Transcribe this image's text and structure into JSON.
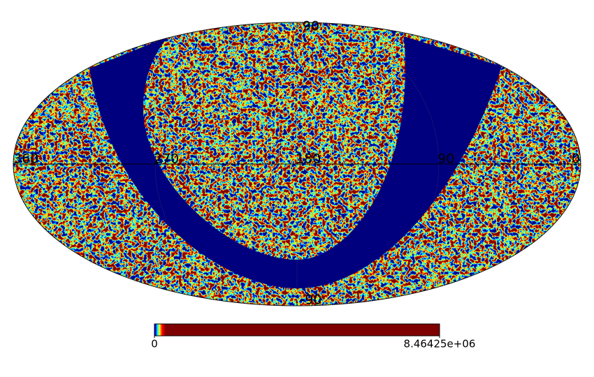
{
  "chart_data": {
    "type": "mollweide",
    "xlim": [
      360,
      0
    ],
    "xticks": [
      360,
      270,
      180,
      90,
      0
    ],
    "ylim": [
      -90,
      90
    ],
    "yticks": [
      90,
      -90
    ],
    "grid": true,
    "colormap": "jet",
    "mask_color": "#00007f",
    "clim": [
      0,
      8464250
    ],
    "cticks": [
      0,
      {
        "value": 8464250,
        "label": "8.46425e+06"
      }
    ]
  }
}
